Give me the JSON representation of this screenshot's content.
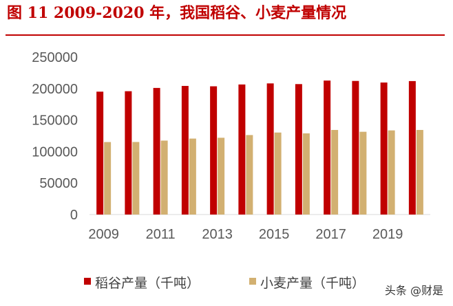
{
  "header": {
    "title": "图 11    2009-2020 年，我国稻谷、小麦产量情况"
  },
  "watermark": {
    "text": "头条 @财是"
  },
  "chart_data": {
    "type": "bar",
    "categories": [
      "2009",
      "2010",
      "2011",
      "2012",
      "2013",
      "2014",
      "2015",
      "2016",
      "2017",
      "2018",
      "2019",
      "2020"
    ],
    "x_tick_labels": [
      "2009",
      "2011",
      "2013",
      "2015",
      "2017",
      "2019"
    ],
    "series": [
      {
        "name": "稻谷产量（千吨）",
        "color": "#c00000",
        "values": [
          195100,
          195800,
          201000,
          204200,
          203600,
          206500,
          208200,
          207100,
          212700,
          212100,
          209600,
          211900
        ]
      },
      {
        "name": "小麦产量（千吨）",
        "color": "#d2b071",
        "values": [
          115100,
          115200,
          117400,
          120600,
          121900,
          126200,
          130200,
          128900,
          134300,
          131400,
          133600,
          134300
        ]
      }
    ],
    "ylim": [
      0,
      250000
    ],
    "y_ticks": [
      "0",
      "50000",
      "100000",
      "150000",
      "200000",
      "250000"
    ],
    "xlabel": "",
    "ylabel": "",
    "grid": false,
    "legend_position": "bottom"
  }
}
